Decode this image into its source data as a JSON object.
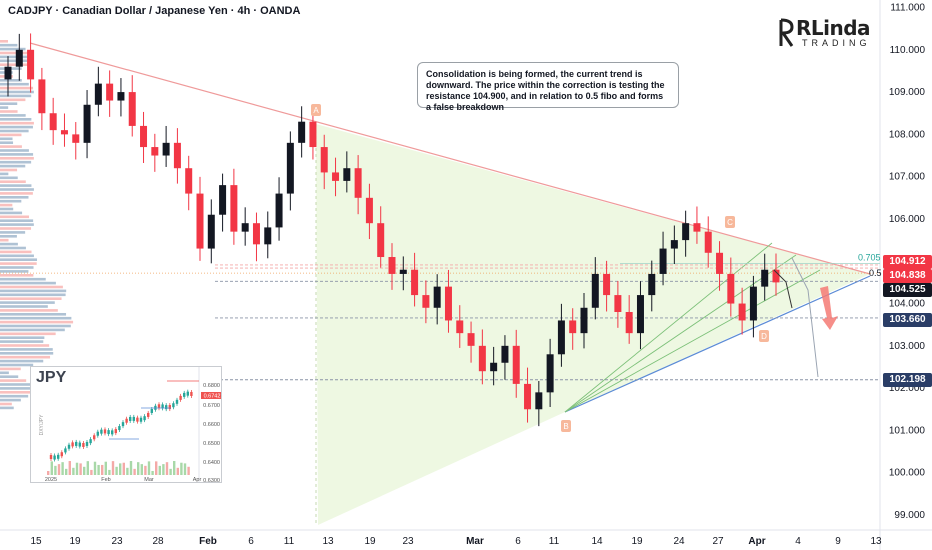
{
  "header": {
    "title": "CADJPY · Canadian Dollar / Japanese Yen · 4h · OANDA"
  },
  "logo": {
    "main": "RLinda",
    "sub": "TRADING"
  },
  "annotation": {
    "text": "Consolidation is being formed, the current trend is downward. The price within the correction is testing the resistance 104.900, and in relation to 0.5 fibo and forms a false breakdown"
  },
  "wave_labels": [
    "A",
    "B",
    "C",
    "D"
  ],
  "fib": {
    "level_0705": "0.705",
    "level_05": "0.5"
  },
  "price_badges": [
    {
      "label": "104.912",
      "color": "#f23645"
    },
    {
      "label": "104.838",
      "color": "#f23645"
    },
    {
      "label": "104.525",
      "color": "#131722"
    },
    {
      "label": "103.660",
      "color": "#2a3d66"
    },
    {
      "label": "102.198",
      "color": "#2a3d66"
    }
  ],
  "inset": {
    "title": "JPY",
    "y_ticks": [
      "0.6800",
      "0.6700",
      "0.6600",
      "0.6500",
      "0.6400",
      "0.6300"
    ],
    "last_label": "0.6742",
    "x_ticks": [
      "2025",
      "Feb",
      "Mar",
      "Apr"
    ],
    "side_label": "DXY/JPY"
  },
  "colors": {
    "up": "#26a69a",
    "down": "#ef5350",
    "candle_up": "#131722",
    "candle_down": "#f23645",
    "trendline": "#ef9a9a",
    "support": "#5b8bd6",
    "triangle_fill": "#e8f5d8"
  },
  "chart_data": {
    "type": "candlestick",
    "title": "CADJPY · Canadian Dollar / Japanese Yen · 4h · OANDA",
    "y_axis": {
      "min": 99.0,
      "max": 111.0,
      "ticks": [
        "111.000",
        "110.000",
        "109.000",
        "108.000",
        "107.000",
        "106.000",
        "105.000",
        "104.000",
        "103.000",
        "102.000",
        "101.000",
        "100.000",
        "99.000"
      ]
    },
    "x_axis": {
      "ticks": [
        "15",
        "19",
        "23",
        "28",
        "Feb",
        "6",
        "11",
        "13",
        "19",
        "23",
        "Mar",
        "6",
        "11",
        "14",
        "19",
        "24",
        "27",
        "Apr",
        "4",
        "9",
        "13"
      ]
    },
    "series": [
      {
        "name": "CADJPY",
        "close": [
          109.6,
          110.0,
          109.3,
          108.5,
          108.1,
          108.0,
          107.8,
          108.7,
          109.2,
          108.8,
          109.0,
          108.2,
          107.7,
          107.5,
          107.8,
          107.2,
          106.6,
          105.3,
          106.1,
          106.8,
          105.7,
          105.9,
          105.4,
          105.8,
          106.6,
          107.8,
          108.3,
          107.7,
          107.1,
          106.9,
          107.2,
          106.5,
          105.9,
          105.1,
          104.7,
          104.8,
          104.2,
          103.9,
          104.4,
          103.6,
          103.3,
          103.0,
          102.4,
          102.6,
          103.0,
          102.1,
          101.5,
          101.9,
          102.8,
          103.6,
          103.3,
          103.9,
          104.7,
          104.2,
          103.8,
          103.3,
          104.2,
          104.7,
          105.3,
          105.5,
          105.9,
          105.7,
          105.2,
          104.7,
          104.0,
          103.6,
          104.4,
          104.8,
          104.5
        ]
      }
    ],
    "levels": [
      {
        "price": 104.912,
        "label": "104.912"
      },
      {
        "price": 104.838,
        "label": "104.838"
      },
      {
        "price": 104.525,
        "label": "104.525"
      },
      {
        "price": 103.66,
        "label": "103.660"
      },
      {
        "price": 102.198,
        "label": "102.198"
      }
    ],
    "grid": false,
    "legend": "none"
  }
}
